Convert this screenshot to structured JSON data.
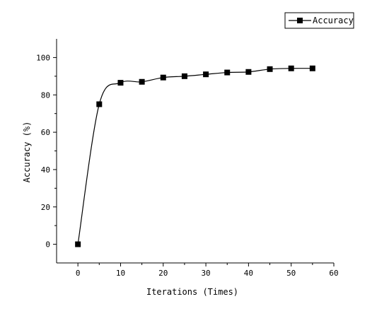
{
  "chart_data": {
    "type": "line",
    "xlabel": "Iterations (Times)",
    "ylabel": "Accuracy (%)",
    "xlim": [
      -5,
      60
    ],
    "ylim": [
      -10,
      110
    ],
    "xticks": [
      0,
      10,
      20,
      30,
      40,
      50,
      60
    ],
    "yticks": [
      0,
      20,
      40,
      60,
      80,
      100
    ],
    "grid": false,
    "legend_position": "top-right",
    "series": [
      {
        "name": "Accuracy",
        "color": "#000000",
        "marker": "square",
        "x": [
          0,
          5,
          10,
          15,
          20,
          25,
          30,
          35,
          40,
          45,
          50,
          55
        ],
        "y": [
          0,
          75,
          86.5,
          87,
          89.3,
          90,
          91,
          92,
          92.3,
          93.8,
          94.2,
          94.2
        ]
      }
    ]
  }
}
